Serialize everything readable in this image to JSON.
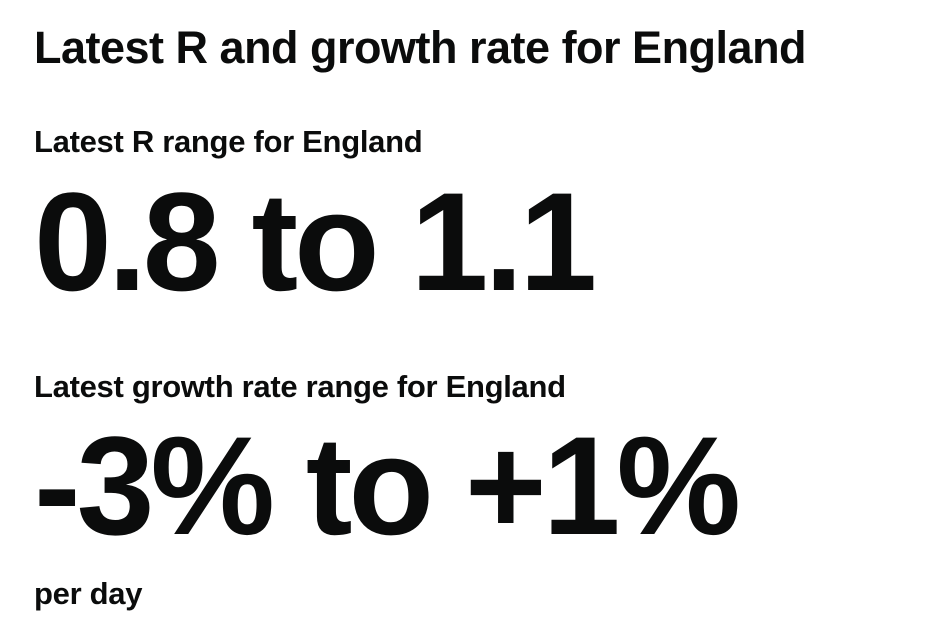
{
  "title": "Latest R and growth rate for England",
  "r_range": {
    "label": "Latest R range for England",
    "value": "0.8 to 1.1"
  },
  "growth_rate": {
    "label": "Latest growth rate range for England",
    "value": "-3% to +1%",
    "unit": "per day"
  }
}
